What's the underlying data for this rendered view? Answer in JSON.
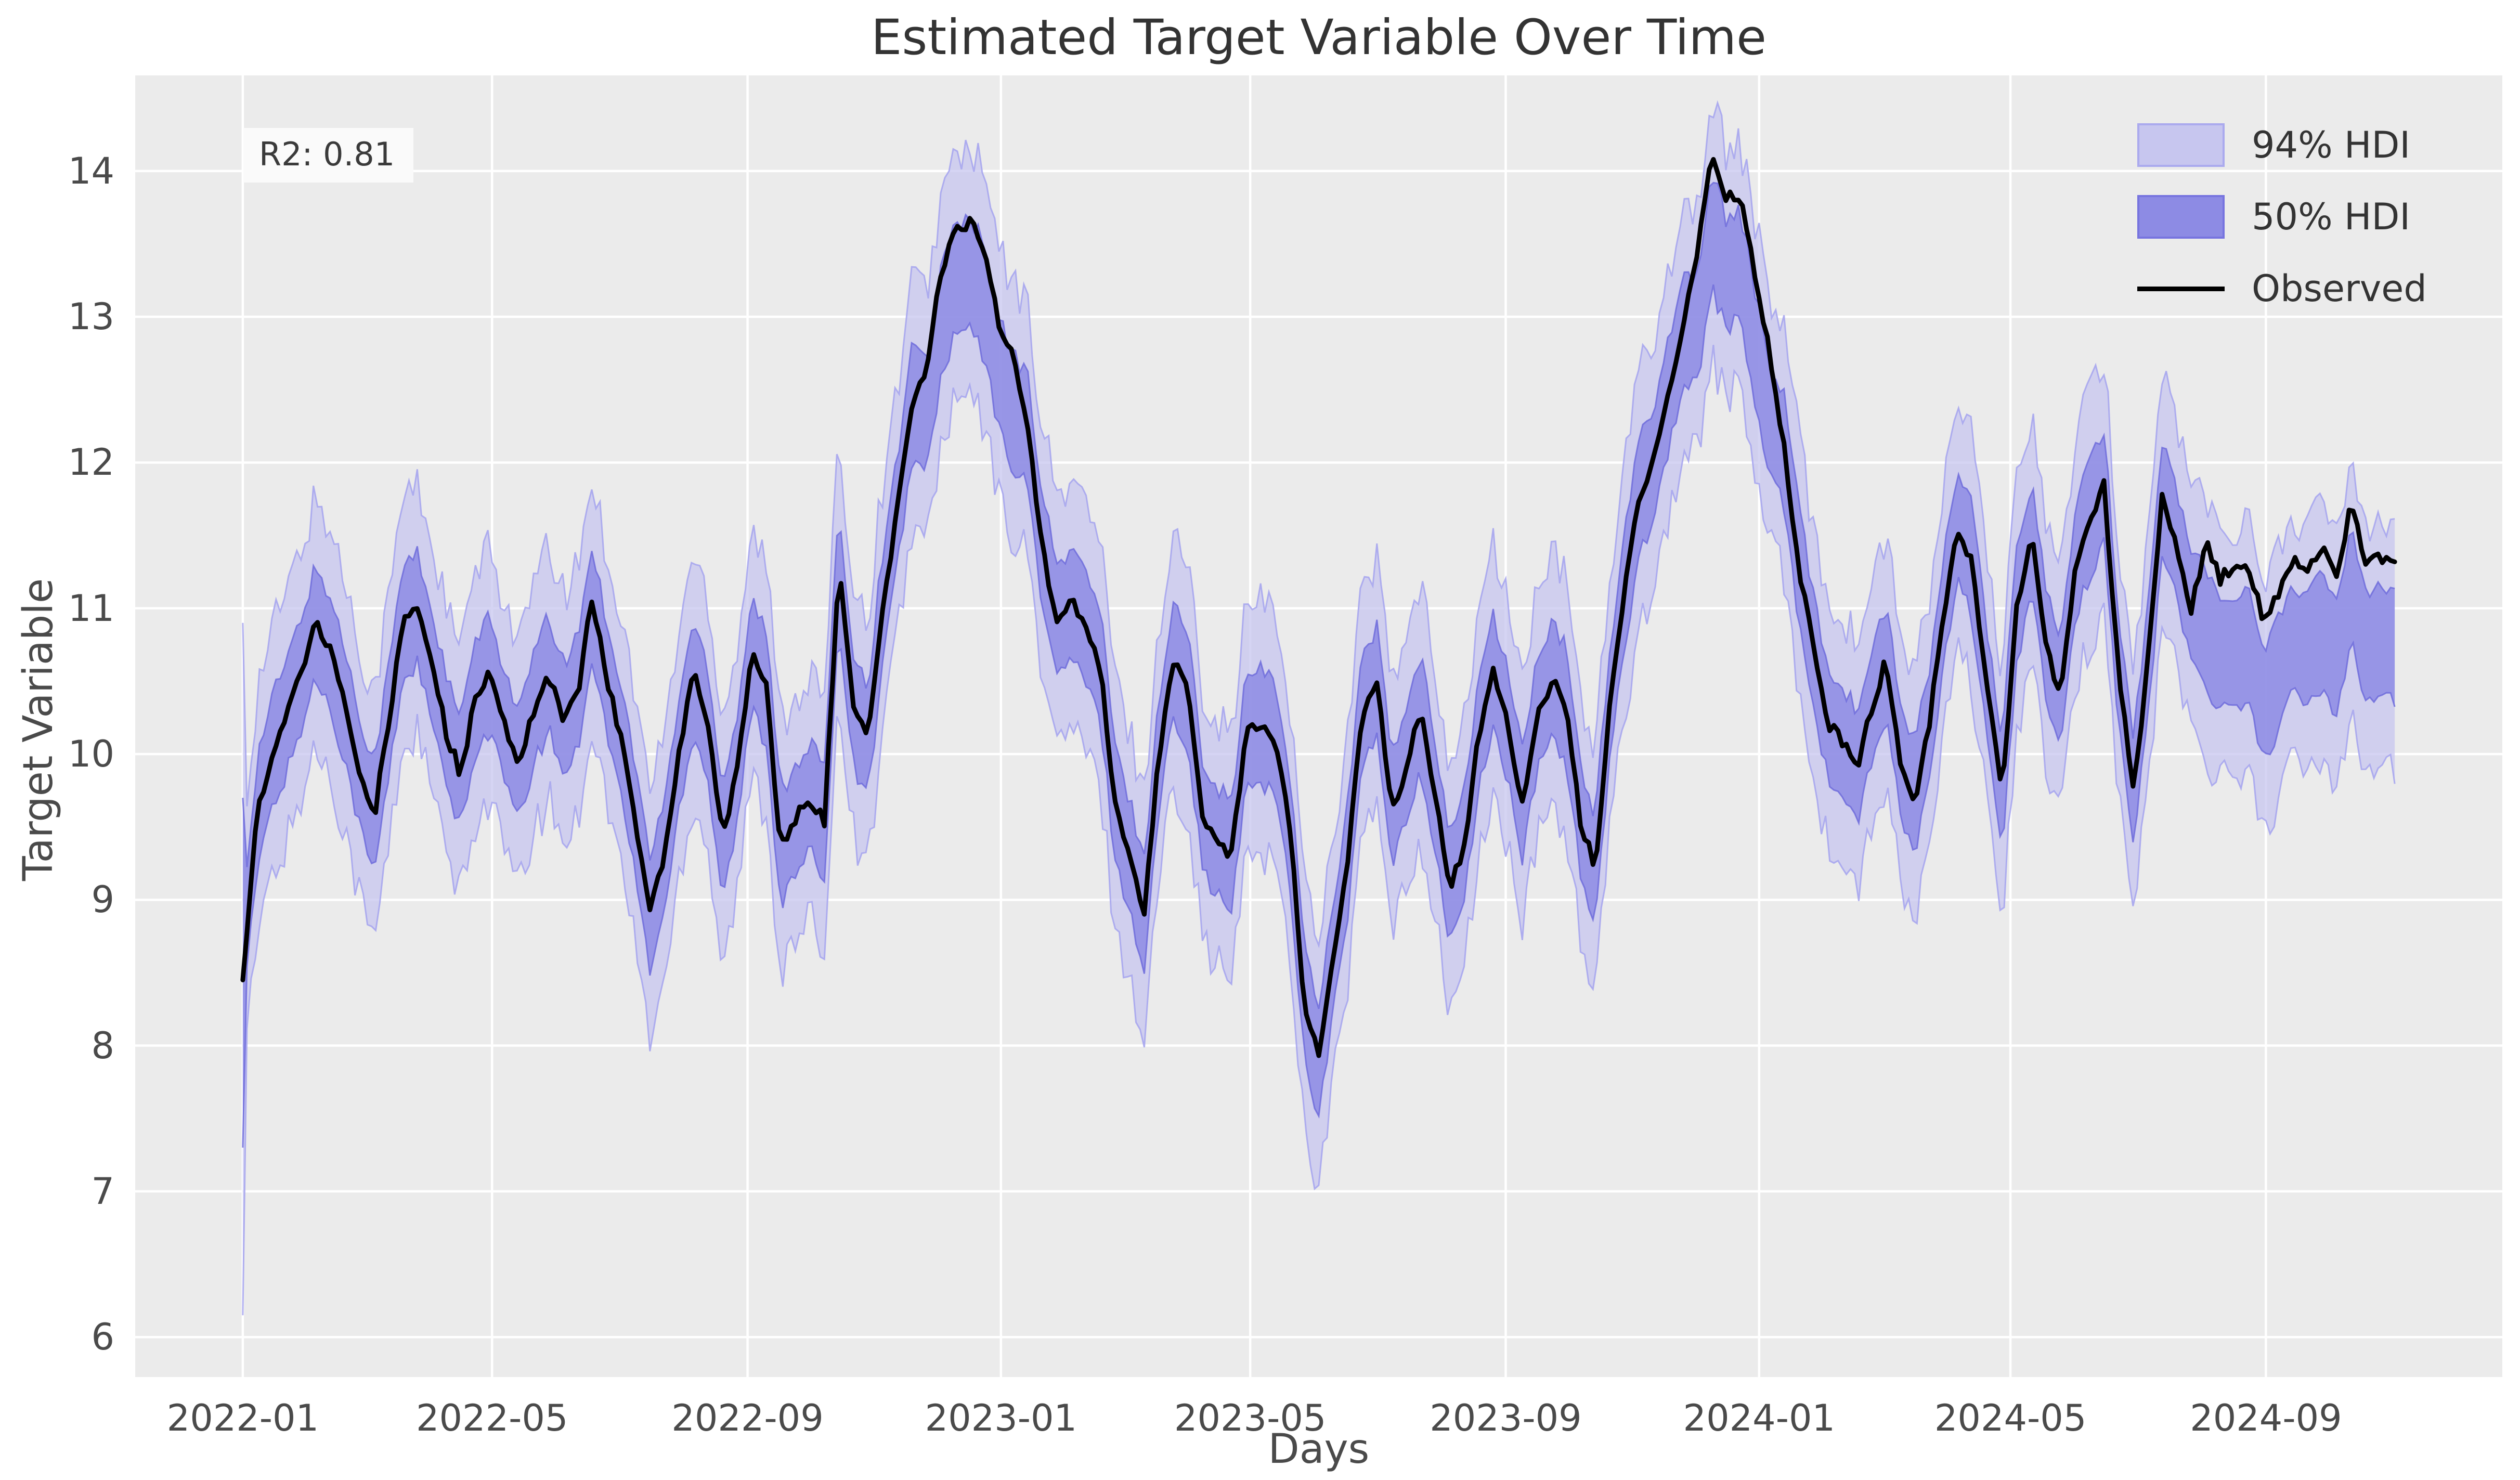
{
  "chart_data": {
    "type": "line",
    "title": "Estimated Target Variable Over Time",
    "xlabel": "Days",
    "ylabel": "Target Variable",
    "annotation": "R2: 0.81",
    "grid": true,
    "legend_position": "upper right",
    "legend": [
      {
        "label": "94% HDI",
        "kind": "band",
        "color": "#c7c6ef"
      },
      {
        "label": "50% HDI",
        "kind": "band",
        "color": "#8d8be4"
      },
      {
        "label": "Observed",
        "kind": "line",
        "color": "#000000"
      }
    ],
    "x_ticks": [
      {
        "label": "2022-01",
        "day": 0
      },
      {
        "label": "2022-05",
        "day": 120
      },
      {
        "label": "2022-09",
        "day": 243
      },
      {
        "label": "2023-01",
        "day": 365
      },
      {
        "label": "2023-05",
        "day": 485
      },
      {
        "label": "2023-09",
        "day": 608
      },
      {
        "label": "2024-01",
        "day": 730
      },
      {
        "label": "2024-05",
        "day": 851
      },
      {
        "label": "2024-09",
        "day": 974
      }
    ],
    "y_ticks": [
      6,
      7,
      8,
      9,
      10,
      11,
      12,
      13,
      14
    ],
    "xlim_days": [
      -51.8,
      1087.8
    ],
    "ylim": [
      5.726,
      14.656
    ],
    "series_start": "2022-01-01",
    "x_step_days": 7,
    "observed": [
      8.45,
      9.6,
      10.0,
      10.25,
      10.55,
      10.9,
      10.7,
      10.35,
      9.9,
      9.55,
      10.2,
      10.9,
      11.0,
      10.6,
      10.15,
      9.85,
      10.4,
      10.55,
      10.2,
      9.9,
      10.3,
      10.55,
      10.25,
      10.4,
      11.05,
      10.55,
      10.1,
      9.55,
      8.9,
      9.3,
      10.0,
      10.55,
      10.2,
      9.4,
      9.9,
      10.7,
      10.45,
      9.35,
      9.55,
      9.7,
      9.55,
      11.3,
      10.3,
      10.1,
      11.0,
      11.65,
      12.4,
      12.65,
      13.3,
      13.6,
      13.65,
      13.45,
      12.95,
      12.7,
      12.2,
      11.4,
      10.9,
      11.05,
      10.85,
      10.6,
      9.65,
      9.3,
      8.9,
      10.0,
      10.65,
      10.45,
      9.6,
      9.4,
      9.3,
      10.15,
      10.2,
      10.1,
      9.5,
      8.3,
      7.9,
      8.6,
      9.3,
      10.3,
      10.5,
      9.6,
      9.9,
      10.3,
      9.7,
      9.1,
      9.35,
      10.15,
      10.55,
      10.2,
      9.65,
      10.25,
      10.5,
      10.35,
      9.55,
      9.2,
      10.3,
      11.1,
      11.75,
      12.0,
      12.45,
      12.9,
      13.4,
      14.1,
      13.8,
      13.85,
      13.3,
      12.75,
      12.1,
      11.3,
      10.75,
      10.2,
      10.1,
      9.9,
      10.3,
      10.65,
      9.95,
      9.7,
      10.2,
      11.0,
      11.55,
      11.3,
      10.4,
      9.75,
      11.0,
      11.5,
      10.8,
      10.35,
      11.3,
      11.6,
      11.85,
      10.6,
      9.75,
      10.6,
      11.75,
      11.45,
      11.0,
      11.45,
      11.2,
      11.3,
      11.25,
      10.9,
      11.1,
      11.35,
      11.25,
      11.4,
      11.2,
      11.75,
      11.3,
      11.35,
      11.3
    ],
    "posterior_center": [
      8.6,
      9.6,
      10.0,
      10.25,
      10.55,
      10.9,
      10.7,
      10.35,
      9.9,
      9.55,
      10.2,
      10.9,
      11.0,
      10.6,
      10.15,
      9.85,
      10.4,
      10.55,
      10.2,
      9.9,
      10.3,
      10.55,
      10.25,
      10.4,
      11.05,
      10.55,
      10.1,
      9.55,
      8.9,
      9.3,
      10.0,
      10.55,
      10.2,
      9.4,
      9.9,
      10.7,
      10.45,
      9.35,
      9.55,
      9.7,
      9.55,
      11.3,
      10.3,
      10.1,
      11.0,
      11.65,
      12.4,
      12.3,
      12.95,
      13.25,
      13.3,
      13.1,
      12.6,
      12.35,
      12.2,
      11.4,
      10.9,
      11.05,
      10.85,
      10.6,
      9.65,
      9.3,
      8.9,
      10.0,
      10.65,
      10.45,
      9.6,
      9.4,
      9.3,
      10.15,
      10.2,
      10.1,
      9.5,
      8.3,
      7.9,
      8.6,
      9.3,
      10.3,
      10.5,
      9.6,
      9.9,
      10.3,
      9.7,
      9.1,
      9.35,
      10.15,
      10.55,
      10.2,
      9.65,
      10.25,
      10.5,
      10.35,
      9.55,
      9.2,
      10.3,
      11.1,
      11.75,
      12.0,
      12.45,
      12.9,
      12.9,
      13.6,
      13.3,
      13.35,
      12.8,
      12.25,
      12.1,
      11.3,
      10.75,
      10.2,
      10.1,
      9.9,
      10.3,
      10.65,
      9.95,
      9.7,
      10.2,
      11.0,
      11.55,
      11.3,
      10.4,
      9.75,
      11.0,
      11.5,
      10.8,
      10.35,
      11.3,
      11.6,
      11.85,
      10.6,
      9.75,
      10.6,
      11.75,
      11.45,
      11.0,
      10.9,
      10.65,
      10.75,
      10.7,
      10.35,
      10.55,
      10.8,
      10.7,
      10.85,
      10.65,
      11.2,
      10.75,
      10.8,
      10.75
    ],
    "hdi94_halfwidth": 0.85,
    "hdi50_halfwidth": 0.38,
    "first_point_hdi94": [
      6.15,
      10.9
    ],
    "first_point_hdi50": [
      7.3,
      9.7
    ],
    "colors": {
      "figure_background": "#ffffff",
      "axes_background": "#ebebeb",
      "gridline": "#ffffff",
      "hdi94_fill": "#c7c6ef",
      "hdi94_edge": "#a5a3ee",
      "hdi50_fill": "#8d8be4",
      "hdi50_edge": "#6f6cda",
      "observed_line": "#000000",
      "tick_text": "#4a4a4a",
      "title_text": "#333333",
      "annotation_bg": "#fafafa"
    }
  }
}
